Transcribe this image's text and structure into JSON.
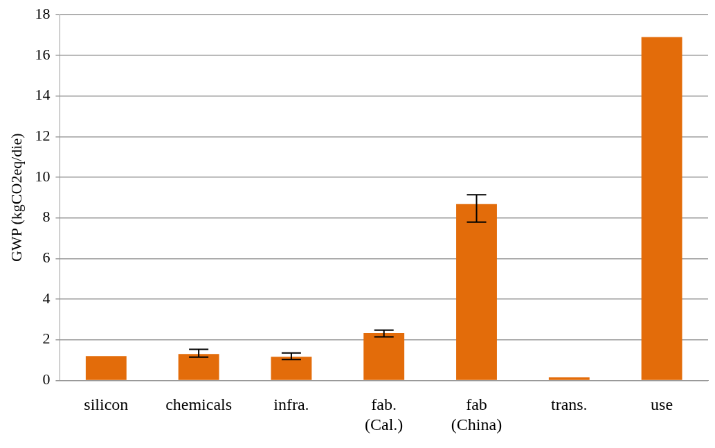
{
  "chart_data": {
    "type": "bar",
    "ylabel": "GWP (kgCO2eq/die)",
    "categories": [
      "silicon",
      "chemicals",
      "infra.",
      "fab.\n(Cal.)",
      "fab\n(China)",
      "trans.",
      "use"
    ],
    "values": [
      1.2,
      1.3,
      1.16,
      2.33,
      8.68,
      0.15,
      16.9
    ],
    "errors": [
      null,
      [
        1.15,
        1.53
      ],
      [
        1.03,
        1.35
      ],
      [
        2.14,
        2.48
      ],
      [
        7.79,
        9.14
      ],
      null,
      null
    ],
    "color": "#e36c0a",
    "ylim": [
      0,
      18
    ],
    "yticks": [
      0,
      2,
      4,
      6,
      8,
      10,
      12,
      14,
      16,
      18
    ],
    "grid": "y",
    "legend": false
  }
}
